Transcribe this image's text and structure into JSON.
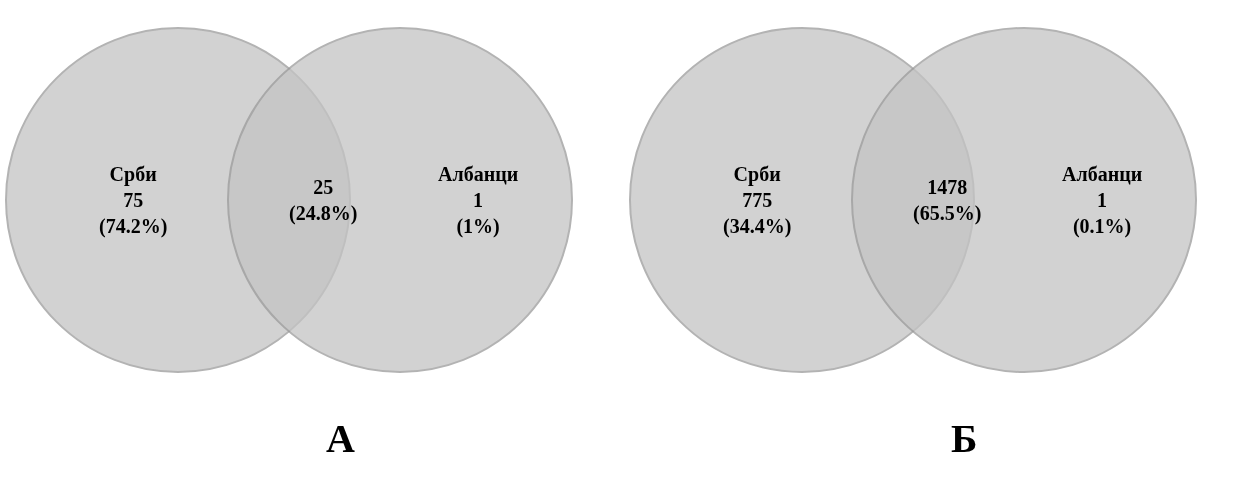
{
  "chart_data": [
    {
      "type": "other",
      "title": "А",
      "categories": [
        "Срби",
        null,
        "Албанци"
      ],
      "values": [
        75,
        25,
        1
      ],
      "data_labels": true,
      "annotations": [
        "(74.2%)",
        "(24.8%)",
        "(1%)"
      ],
      "color": "#c4c4c4"
    },
    {
      "type": "other",
      "title": "Б",
      "categories": [
        "Срби",
        null,
        "Албанци"
      ],
      "values": [
        775,
        1478,
        1
      ],
      "data_labels": true,
      "annotations": [
        "(34.4%)",
        "(65.5%)",
        "(0.1%)"
      ],
      "color": "#c4c4c4"
    }
  ]
}
